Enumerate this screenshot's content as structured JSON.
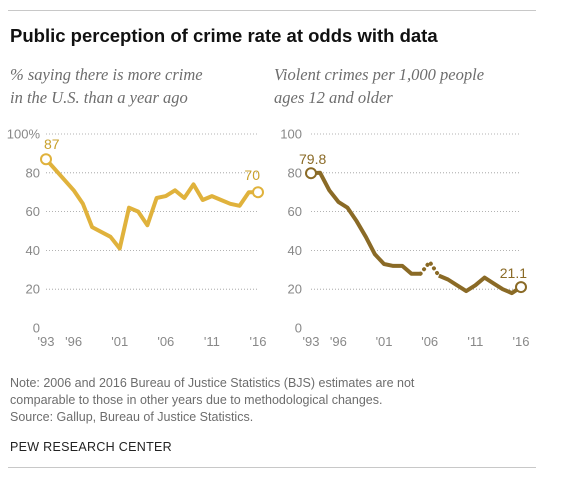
{
  "title": "Public perception of crime rate at odds with data",
  "colors": {
    "left_line": "#e0b23c",
    "right_line": "#8a6a26",
    "label_left": "#c9a12c",
    "label_right": "#8a6a26",
    "axis_text": "#888888",
    "grid": "#9a9a9a"
  },
  "chart_data": [
    {
      "type": "line",
      "subtitle_lines": [
        "% saying there is more crime",
        "in the U.S. than a year ago"
      ],
      "x_tick_labels": [
        "'93",
        "'96",
        "'01",
        "'06",
        "'11",
        "'16"
      ],
      "x_ticks": [
        1993,
        1996,
        2001,
        2006,
        2011,
        2016
      ],
      "y_tick_labels": [
        "100%",
        "80",
        "60",
        "40",
        "20",
        "0"
      ],
      "y_ticks": [
        100,
        80,
        60,
        40,
        20,
        0
      ],
      "ylim": [
        0,
        100
      ],
      "xlim": [
        1993,
        2016
      ],
      "grid": true,
      "series": [
        {
          "x": [
            1993,
            1996,
            1997,
            1998,
            2000,
            2001,
            2002,
            2003,
            2004,
            2005,
            2006,
            2007,
            2008,
            2009,
            2010,
            2011,
            2012,
            2013,
            2014,
            2015,
            2016
          ],
          "y": [
            87,
            71,
            64,
            52,
            47,
            41,
            62,
            60,
            53,
            67,
            68,
            71,
            67,
            74,
            66,
            68,
            66,
            64,
            63,
            70,
            70
          ],
          "dashed_from_x": null
        }
      ],
      "data_labels": [
        {
          "text": "87",
          "x": 1993,
          "y": 87
        },
        {
          "text": "70",
          "x": 2016,
          "y": 70
        }
      ]
    },
    {
      "type": "line",
      "subtitle_lines": [
        "Violent crimes per 1,000 people",
        "ages 12 and older"
      ],
      "x_tick_labels": [
        "'93",
        "'96",
        "'01",
        "'06",
        "'11",
        "'16"
      ],
      "x_ticks": [
        1993,
        1996,
        2001,
        2006,
        2011,
        2016
      ],
      "y_tick_labels": [
        "100",
        "80",
        "60",
        "40",
        "20",
        "0"
      ],
      "y_ticks": [
        100,
        80,
        60,
        40,
        20,
        0
      ],
      "ylim": [
        0,
        100
      ],
      "xlim": [
        1993,
        2016
      ],
      "grid": true,
      "series": [
        {
          "x": [
            1993,
            1994,
            1995,
            1996,
            1997,
            1998,
            1999,
            2000,
            2001,
            2002,
            2003,
            2004,
            2005,
            2006,
            2007,
            2008,
            2009,
            2010,
            2011,
            2012,
            2013,
            2014,
            2015,
            2016
          ],
          "y": [
            79.8,
            80,
            71,
            65,
            62,
            55,
            47,
            38,
            33,
            32,
            32,
            28,
            28,
            34,
            27,
            25,
            22,
            19,
            22,
            26,
            23,
            20,
            18,
            21.1
          ],
          "dashed_from_x": 2005,
          "dashed_to_x": 2007
        }
      ],
      "data_labels": [
        {
          "text": "79.8",
          "x": 1993,
          "y": 79.8
        },
        {
          "text": "21.1",
          "x": 2016,
          "y": 21.1
        }
      ]
    }
  ],
  "note_lines": [
    "Note: 2006 and 2016 Bureau of Justice Statistics (BJS) estimates are not",
    "comparable to those in other years due to methodological changes.",
    "Source: Gallup, Bureau of Justice Statistics."
  ],
  "brand": "PEW RESEARCH CENTER"
}
